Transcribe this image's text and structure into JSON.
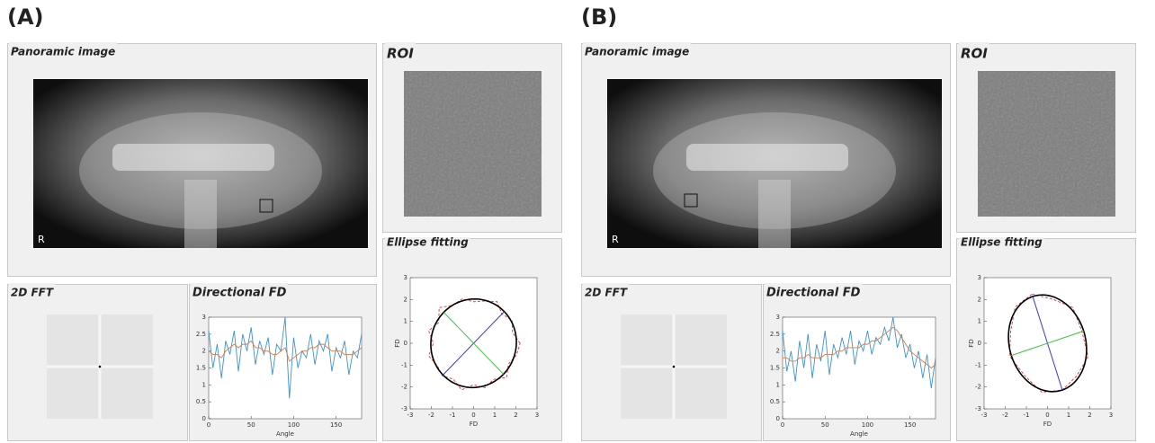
{
  "panels": [
    {
      "label": "(A)",
      "panoramic": {
        "title": "Panoramic image",
        "marker": "R"
      },
      "roi": {
        "title": "ROI"
      },
      "fft": {
        "title": "2D FFT"
      },
      "directional_fd": {
        "type": "line",
        "title": "Directional FD",
        "xlabel": "Angle",
        "x": [
          0,
          5,
          10,
          15,
          20,
          25,
          30,
          35,
          40,
          45,
          50,
          55,
          60,
          65,
          70,
          75,
          80,
          85,
          90,
          95,
          100,
          105,
          110,
          115,
          120,
          125,
          130,
          135,
          140,
          145,
          150,
          155,
          160,
          165,
          170,
          175,
          180
        ],
        "xlim": [
          0,
          180
        ],
        "xticks": [
          0,
          50,
          100,
          150
        ],
        "ylim": [
          0,
          3
        ],
        "yticks": [
          0,
          0.5,
          1,
          1.5,
          2,
          2.5,
          3
        ],
        "series": [
          {
            "color": "#3a93d3",
            "values": [
              2.6,
              1.5,
              2.2,
              1.2,
              2.3,
              1.9,
              2.6,
              1.4,
              2.5,
              2.0,
              2.7,
              1.6,
              2.3,
              1.9,
              2.4,
              1.3,
              2.2,
              2.0,
              3.0,
              0.6,
              2.4,
              1.5,
              2.0,
              1.8,
              2.5,
              1.6,
              2.3,
              2.0,
              2.5,
              1.4,
              2.1,
              1.8,
              2.3,
              1.3,
              2.0,
              1.8,
              2.5
            ]
          },
          {
            "color": "#e0793a",
            "values": [
              2.0,
              1.9,
              1.9,
              1.8,
              2.0,
              2.1,
              2.2,
              2.1,
              2.2,
              2.2,
              2.3,
              2.1,
              2.1,
              2.0,
              2.0,
              1.9,
              1.9,
              2.0,
              2.1,
              1.7,
              1.8,
              1.9,
              2.0,
              2.0,
              2.1,
              2.1,
              2.2,
              2.2,
              2.1,
              2.0,
              2.0,
              2.0,
              1.9,
              1.9,
              1.9,
              2.0,
              2.1
            ]
          }
        ]
      },
      "ellipse_fitting": {
        "type": "ellipse",
        "title": "Ellipse fitting",
        "xlabel": "FD",
        "ylabel": "FD",
        "xlim": [
          -3,
          3
        ],
        "xticks": [
          -3,
          -2,
          -1,
          0,
          1,
          2,
          3
        ],
        "ylim": [
          -3,
          3
        ],
        "yticks": [
          -3,
          -2,
          -1,
          0,
          1,
          2,
          3
        ],
        "fit_points": {
          "color": "#e03a3a",
          "x": [
            2.2,
            1.84,
            1.82,
            1.34,
            1.1,
            0.52,
            0,
            -0.54,
            -1.0,
            -1.63,
            -1.65,
            -2.13,
            -1.9,
            -2.13,
            -1.73,
            -1.48,
            -0.95,
            -0.57,
            0,
            0.54,
            0.95,
            1.56,
            1.65,
            2.03
          ],
          "y": [
            0,
            0.49,
            1.05,
            1.34,
            1.91,
            1.93,
            1.9,
            2.03,
            1.73,
            1.63,
            0.95,
            0.57,
            0,
            -0.57,
            -1.0,
            -1.48,
            -1.65,
            -2.13,
            -1.9,
            -2.03,
            -1.65,
            -1.56,
            -0.95,
            -0.54
          ]
        },
        "ellipse": {
          "color": "#000000",
          "center_x": 0,
          "center_y": 0,
          "semi_major": 2.05,
          "semi_minor": 2.0,
          "angle_deg": 45
        },
        "major_axis": {
          "color": "#3a3ad0",
          "x": [
            -1.45,
            1.45
          ],
          "y": [
            -1.45,
            1.45
          ]
        },
        "minor_axis": {
          "color": "#3ac83a",
          "x": [
            -1.41,
            1.41
          ],
          "y": [
            1.41,
            -1.41
          ]
        }
      }
    },
    {
      "label": "(B)",
      "panoramic": {
        "title": "Panoramic image",
        "marker": "R"
      },
      "roi": {
        "title": "ROI"
      },
      "fft": {
        "title": "2D FFT"
      },
      "directional_fd": {
        "type": "line",
        "title": "Directional FD",
        "xlabel": "Angle",
        "x": [
          0,
          5,
          10,
          15,
          20,
          25,
          30,
          35,
          40,
          45,
          50,
          55,
          60,
          65,
          70,
          75,
          80,
          85,
          90,
          95,
          100,
          105,
          110,
          115,
          120,
          125,
          130,
          135,
          140,
          145,
          150,
          155,
          160,
          165,
          170,
          175,
          180
        ],
        "xlim": [
          0,
          180
        ],
        "xticks": [
          0,
          50,
          100,
          150
        ],
        "ylim": [
          0,
          3
        ],
        "yticks": [
          0,
          0.5,
          1,
          1.5,
          2,
          2.5,
          3
        ],
        "series": [
          {
            "color": "#3a93d3",
            "values": [
              2.6,
              1.4,
              2.0,
              1.1,
              2.3,
              1.5,
              2.5,
              1.2,
              2.2,
              1.7,
              2.6,
              1.3,
              2.2,
              1.8,
              2.4,
              1.9,
              2.6,
              1.6,
              2.3,
              2.0,
              2.6,
              1.9,
              2.4,
              2.2,
              2.7,
              2.3,
              3.0,
              2.1,
              2.5,
              1.8,
              2.2,
              1.5,
              2.0,
              1.2,
              1.9,
              0.9,
              1.8
            ]
          },
          {
            "color": "#e0793a",
            "values": [
              1.8,
              1.8,
              1.7,
              1.7,
              1.8,
              1.8,
              1.9,
              1.8,
              1.8,
              1.8,
              1.9,
              1.9,
              1.9,
              2.0,
              2.0,
              2.1,
              2.1,
              2.1,
              2.1,
              2.2,
              2.2,
              2.3,
              2.3,
              2.4,
              2.5,
              2.6,
              2.7,
              2.6,
              2.4,
              2.2,
              2.0,
              1.9,
              1.8,
              1.7,
              1.6,
              1.5,
              1.6
            ]
          }
        ]
      },
      "ellipse_fitting": {
        "type": "ellipse",
        "title": "Ellipse fitting",
        "xlabel": "FD",
        "ylabel": "FD",
        "xlim": [
          -3,
          3
        ],
        "xticks": [
          -3,
          -2,
          -1,
          0,
          1,
          2,
          3
        ],
        "ylim": [
          -3,
          3
        ],
        "yticks": [
          -3,
          -2,
          -1,
          0,
          1,
          2,
          3
        ],
        "fit_points": {
          "color": "#e03a3a",
          "x": [
            -0.73,
            0.24,
            1.2,
            1.63,
            1.92,
            1.38,
            0.7,
            -0.27,
            -1.08,
            -1.8,
            -1.74,
            -1.53
          ],
          "y": [
            2.25,
            2.02,
            1.63,
            0.53,
            -0.61,
            -1.5,
            -2.14,
            -2.24,
            -1.48,
            -0.58,
            0.56,
            1.66
          ]
        },
        "ellipse": {
          "color": "#000000",
          "center_x": 0,
          "center_y": 0,
          "semi_major": 2.25,
          "semi_minor": 1.8,
          "angle_deg": 108
        },
        "major_axis": {
          "color": "#3a3ad0",
          "x": [
            -0.7,
            0.7
          ],
          "y": [
            2.14,
            -2.14
          ]
        },
        "minor_axis": {
          "color": "#3ac83a",
          "x": [
            -1.71,
            1.71
          ],
          "y": [
            -0.56,
            0.56
          ]
        }
      }
    }
  ]
}
